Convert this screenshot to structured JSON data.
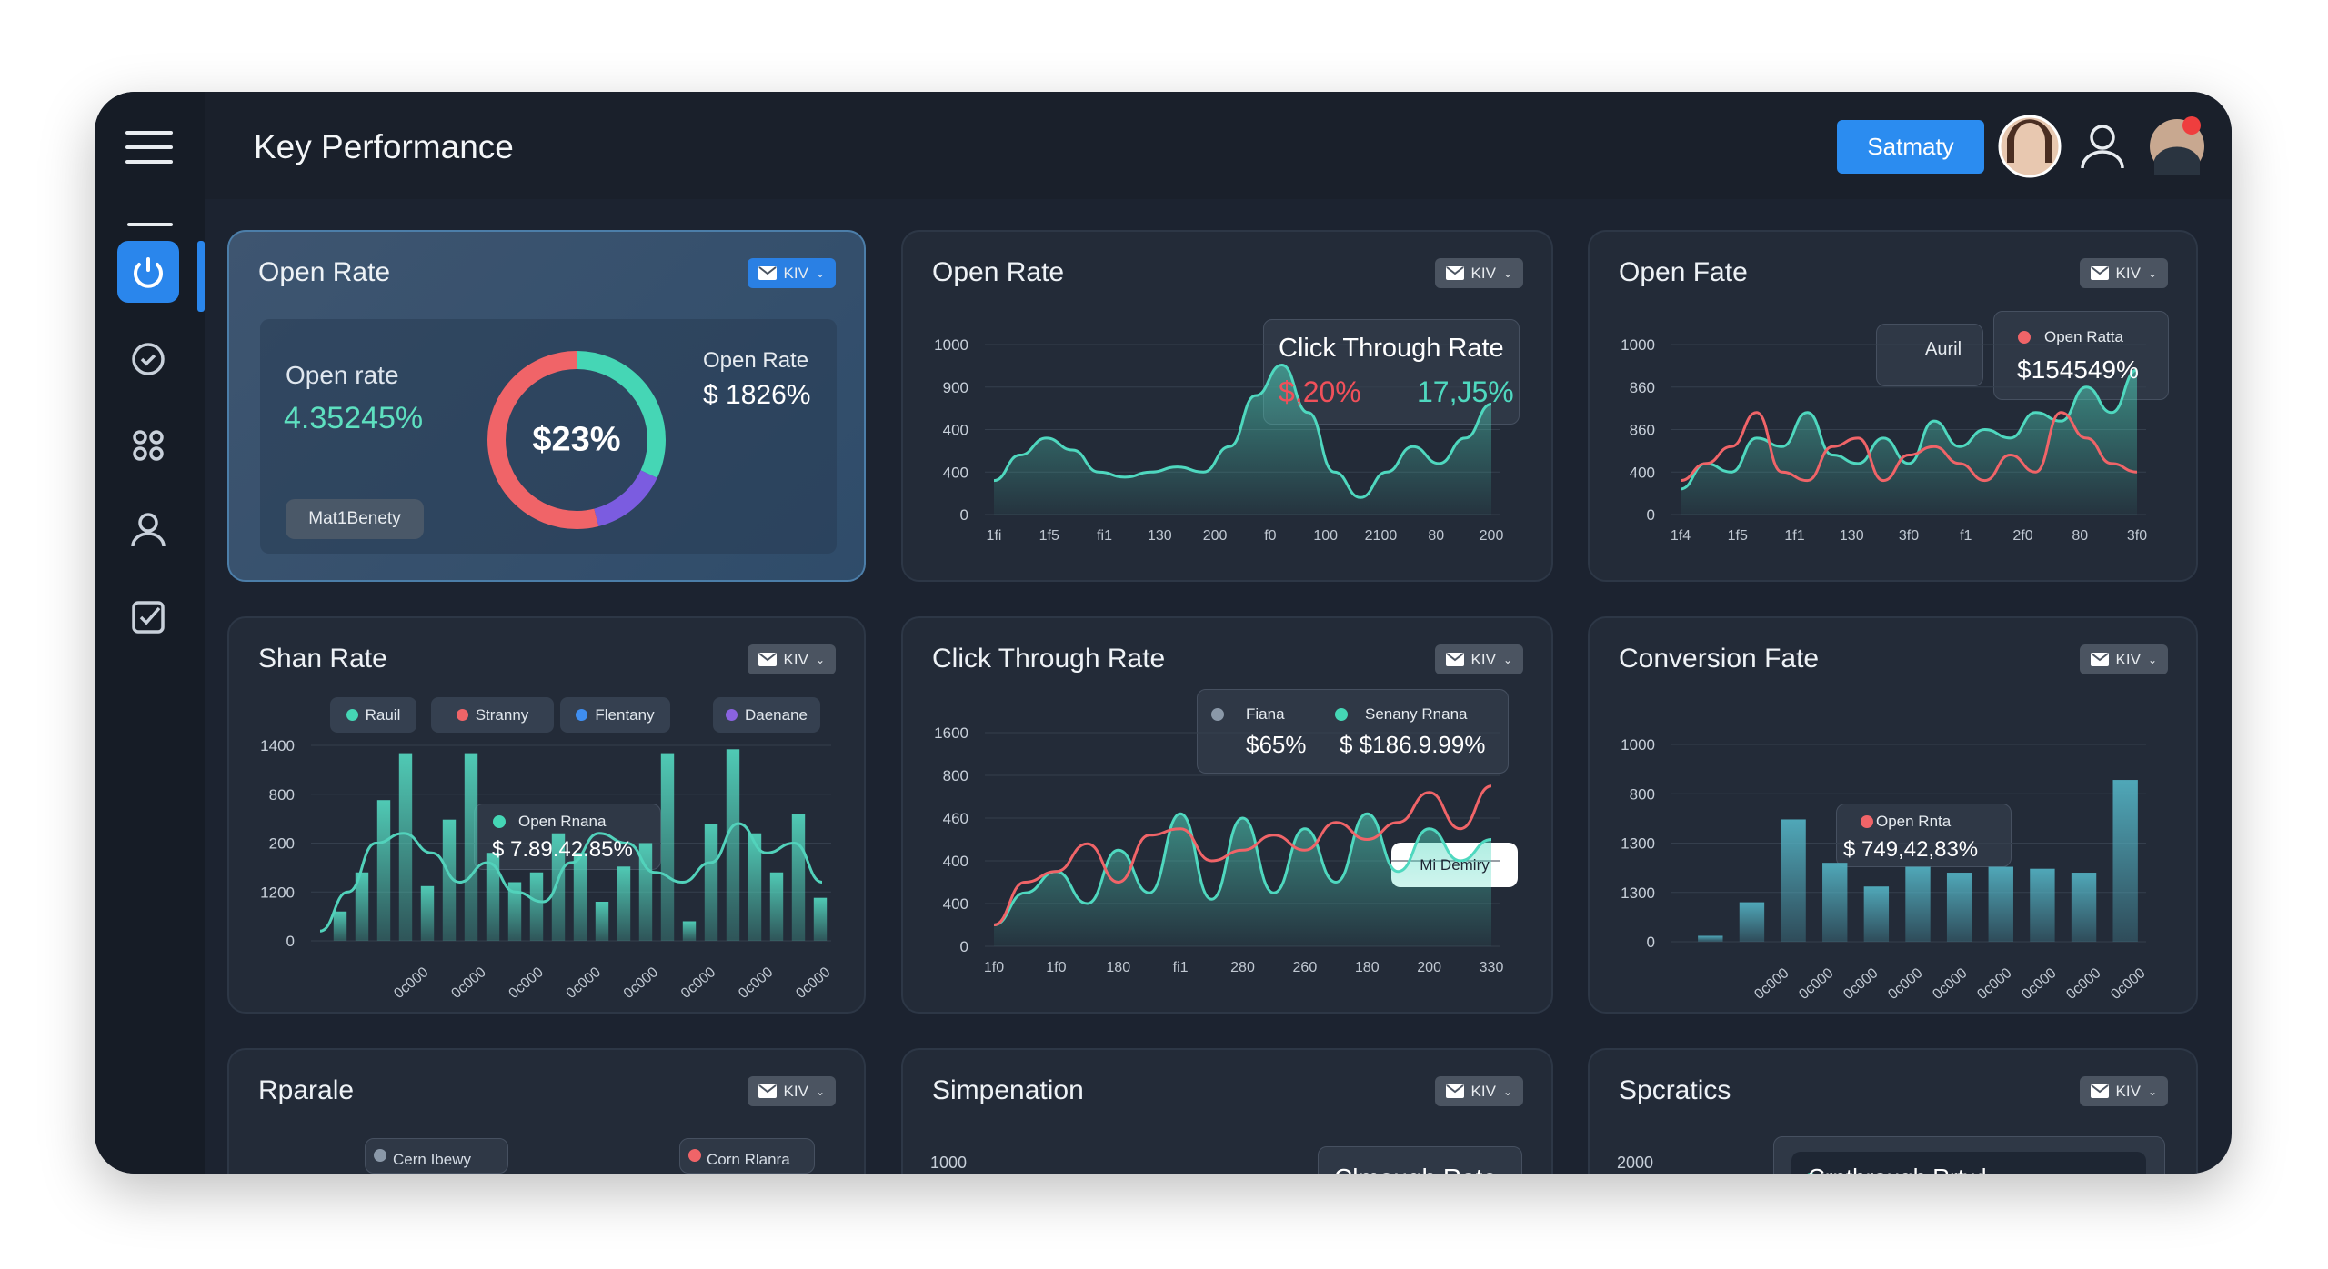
{
  "header": {
    "title": "Key Performance",
    "button": "Satmaty"
  },
  "cards": [
    {
      "title": "Open Rate",
      "badge": "KIV",
      "type": "donut",
      "segments": [
        {
          "color": "#45d6b5",
          "value": 32
        },
        {
          "color": "#7b5ce0",
          "value": 14
        },
        {
          "color": "#f06468",
          "value": 54
        }
      ],
      "notes": [
        "Open rate",
        "4.35245%",
        "Open Rate",
        "$ 1826%",
        "Mat1Benety",
        "$23%"
      ]
    },
    {
      "title": "Open Rate",
      "badge": "KIV",
      "type": "line",
      "ylim": [
        0,
        100
      ],
      "y_labels": [
        "1000",
        "900",
        "400",
        "400",
        "0"
      ],
      "x_labels": [
        "1fi",
        "1f5",
        "fi1",
        "130",
        "200",
        "f0",
        "100",
        "2100",
        "80",
        "200"
      ],
      "series": [
        {
          "color": "#4fd8bf",
          "area": true,
          "values": [
            20,
            35,
            45,
            38,
            25,
            22,
            25,
            28,
            25,
            40,
            70,
            88,
            60,
            25,
            10,
            25,
            40,
            30,
            45,
            65
          ]
        }
      ],
      "notes": [
        "Click Through Rate",
        "$,20%",
        "17,J5%"
      ]
    },
    {
      "title": "Open Fate",
      "badge": "KIV",
      "type": "line",
      "ylim": [
        0,
        100
      ],
      "y_labels": [
        "1000",
        "860",
        "860",
        "400",
        "0"
      ],
      "x_labels": [
        "1f4",
        "1f5",
        "1f1",
        "130",
        "3f0",
        "f1",
        "2f0",
        "80",
        "3f0"
      ],
      "series": [
        {
          "color": "#4fd8bf",
          "area": true,
          "values": [
            15,
            30,
            25,
            45,
            40,
            60,
            35,
            30,
            45,
            30,
            55,
            40,
            50,
            45,
            60,
            55,
            75,
            60,
            85
          ]
        },
        {
          "color": "#f06468",
          "values": [
            20,
            30,
            40,
            60,
            25,
            20,
            40,
            45,
            20,
            35,
            40,
            30,
            20,
            35,
            25,
            60,
            45,
            30,
            25
          ]
        }
      ],
      "notes": [
        "Auril",
        "Open Ratta",
        "$154549%"
      ]
    },
    {
      "title": "Shan Rate",
      "badge": "KIV",
      "type": "bar",
      "ylim": [
        0,
        100
      ],
      "legend": [
        {
          "name": "Rauil",
          "color": "#45d6b5"
        },
        {
          "name": "Stranny",
          "color": "#f06468"
        },
        {
          "name": "Flentany",
          "color": "#3f8ef0"
        },
        {
          "name": "Daenane",
          "color": "#8a63e0"
        }
      ],
      "y_labels": [
        "1400",
        "800",
        "200",
        "1200",
        "0"
      ],
      "x_labels": [
        "0c000",
        "0c000",
        "0c000",
        "0c000",
        "0c000",
        "0c000",
        "0c000",
        "0c000"
      ],
      "series": [
        {
          "type": "bar",
          "color": "#52d2bb",
          "values": [
            15,
            35,
            72,
            96,
            28,
            62,
            96,
            45,
            30,
            35,
            55,
            45,
            20,
            38,
            50,
            96,
            10,
            60,
            98,
            55,
            35,
            65,
            22
          ]
        },
        {
          "type": "line",
          "color": "#52d2bb",
          "values": [
            5,
            25,
            50,
            55,
            45,
            30,
            40,
            25,
            20,
            40,
            55,
            50,
            35,
            30,
            40,
            60,
            45,
            50,
            30
          ]
        }
      ],
      "notes": [
        "Open Rnana",
        "$ 7.89.42.85%"
      ]
    },
    {
      "title": "Click Through Rate",
      "badge": "KIV",
      "type": "line",
      "ylim": [
        0,
        100
      ],
      "y_labels": [
        "1600",
        "800",
        "460",
        "400",
        "400",
        "0"
      ],
      "x_labels": [
        "1f0",
        "1f0",
        "180",
        "fi1",
        "280",
        "260",
        "180",
        "200",
        "330"
      ],
      "series": [
        {
          "color": "#4fd8bf",
          "area": true,
          "values": [
            10,
            25,
            35,
            20,
            45,
            25,
            62,
            22,
            60,
            25,
            55,
            30,
            62,
            35,
            55,
            40,
            50
          ]
        },
        {
          "color": "#f06468",
          "values": [
            10,
            30,
            35,
            48,
            30,
            52,
            55,
            40,
            45,
            52,
            45,
            58,
            50,
            58,
            72,
            55,
            75
          ]
        }
      ],
      "notes": [
        "Fiana",
        "$65%",
        "Senany Rnana",
        "$ $186.9.99%",
        "Mi Demiry"
      ]
    },
    {
      "title": "Conversion Fate",
      "badge": "KIV",
      "type": "bar",
      "ylim": [
        0,
        100
      ],
      "y_labels": [
        "1000",
        "800",
        "1300",
        "1300",
        "0"
      ],
      "x_labels": [
        "0c000",
        "0c000",
        "0c000",
        "0c000",
        "0c000",
        "0c000",
        "0c000",
        "0c000",
        "0c000"
      ],
      "series": [
        {
          "type": "bar",
          "color": "#52aebf",
          "values": [
            3,
            20,
            62,
            40,
            28,
            38,
            35,
            38,
            37,
            35,
            82
          ]
        }
      ],
      "notes": [
        "Open Rnta",
        "$ 749,42,83%"
      ]
    },
    {
      "title": "Rparale",
      "badge": "KIV",
      "type": "none",
      "notes": [
        "Cern Ibewy",
        "Corn Rlanra"
      ]
    },
    {
      "title": "Simpenation",
      "badge": "KIV",
      "type": "none",
      "notes": [
        "1000",
        "Clmough Rate"
      ]
    },
    {
      "title": "Spcratics",
      "badge": "KIV",
      "type": "none",
      "notes": [
        "2000",
        "Crnthrough Rrtwl"
      ]
    }
  ]
}
